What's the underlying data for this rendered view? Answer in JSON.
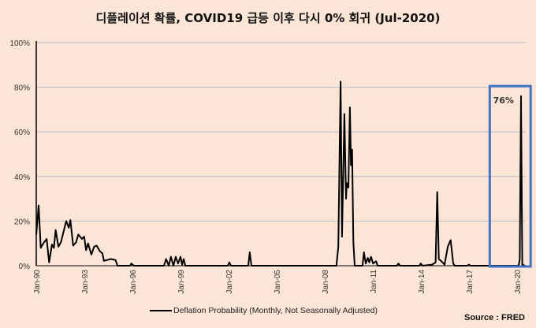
{
  "chart_data": {
    "type": "line",
    "title": "디플레이션 확률, COVID19 급등 이후 다시 0% 회귀 (Jul-2020)",
    "xlabel": "",
    "ylabel": "",
    "xlim": [
      1990,
      2020.6
    ],
    "ylim": [
      0,
      100
    ],
    "y_ticks": [
      0,
      20,
      40,
      60,
      80,
      100
    ],
    "y_tick_labels": [
      "0%",
      "20%",
      "40%",
      "60%",
      "80%",
      "100%"
    ],
    "x_ticks": [
      1990,
      1993,
      1996,
      1999,
      2002,
      2005,
      2008,
      2011,
      2014,
      2017,
      2020
    ],
    "x_tick_labels": [
      "Jan-90",
      "Jan-93",
      "Jan-96",
      "Jan-99",
      "Jan-02",
      "Jan-05",
      "Jan-08",
      "Jan-11",
      "Jan-14",
      "Jan-17",
      "Jan-20"
    ],
    "grid": true,
    "legend_position": "bottom",
    "series": [
      {
        "name": "Deflation Probability (Monthly, Not Seasonally Adjusted)",
        "color": "#000000",
        "x": [
          1990.0,
          1990.15,
          1990.28,
          1990.44,
          1990.65,
          1990.8,
          1990.98,
          1991.1,
          1991.21,
          1991.38,
          1991.54,
          1991.87,
          1992.03,
          1992.13,
          1992.3,
          1992.49,
          1992.62,
          1992.85,
          1992.99,
          1993.11,
          1993.23,
          1993.44,
          1993.61,
          1993.77,
          1993.97,
          1994.13,
          1994.22,
          1994.66,
          1994.95,
          1995.07,
          1995.85,
          1995.94,
          1996.0,
          1996.1,
          1997.97,
          1998.1,
          1998.27,
          1998.4,
          1998.56,
          1998.7,
          1998.85,
          1999.0,
          1999.1,
          1999.2,
          1999.3,
          2001.95,
          2002.05,
          2002.15,
          2003.23,
          2003.32,
          2003.43,
          2008.73,
          2008.85,
          2008.99,
          2009.08,
          2009.23,
          2009.33,
          2009.38,
          2009.48,
          2009.57,
          2009.64,
          2009.71,
          2009.79,
          2009.87,
          2010.36,
          2010.45,
          2010.56,
          2010.69,
          2010.78,
          2010.89,
          2011.02,
          2011.21,
          2011.3,
          2012.5,
          2012.6,
          2012.7,
          2013.9,
          2014.0,
          2014.1,
          2014.7,
          2014.92,
          2015.02,
          2015.12,
          2015.28,
          2015.48,
          2015.68,
          2015.86,
          2016.02,
          2016.12,
          2016.9,
          2017.0,
          2017.1,
          2020.05,
          2020.12,
          2020.17,
          2020.25,
          2020.33,
          2020.5
        ],
        "values": [
          14,
          27,
          8,
          10,
          12,
          1.5,
          9.5,
          8,
          16,
          8.5,
          10.5,
          20,
          17,
          20.5,
          9,
          10.5,
          14,
          12,
          13,
          7,
          10,
          5,
          8.5,
          9,
          6.5,
          5.5,
          2.2,
          3,
          2.5,
          0,
          0,
          1,
          0.5,
          0,
          0,
          3,
          0,
          4,
          0,
          4,
          1,
          4,
          0.5,
          3,
          0,
          0,
          1.5,
          0,
          0,
          6,
          0,
          0,
          8.5,
          82.5,
          13,
          68,
          30,
          37,
          35,
          71,
          45,
          52,
          10.5,
          0,
          0,
          6,
          1,
          3.5,
          1.5,
          4,
          1,
          2,
          0,
          0,
          1,
          0,
          0,
          1,
          0,
          0.5,
          1.5,
          33,
          3,
          2,
          0.5,
          8.5,
          11.5,
          1,
          0,
          0,
          0.5,
          0,
          0,
          0.5,
          3,
          76,
          0.5,
          0
        ]
      }
    ],
    "annotations": [
      {
        "text": "76%",
        "x": 2020.25,
        "y": 76,
        "highlight_box": [
          2018.3,
          2020.85
        ]
      }
    ],
    "source": "Source : FRED"
  }
}
